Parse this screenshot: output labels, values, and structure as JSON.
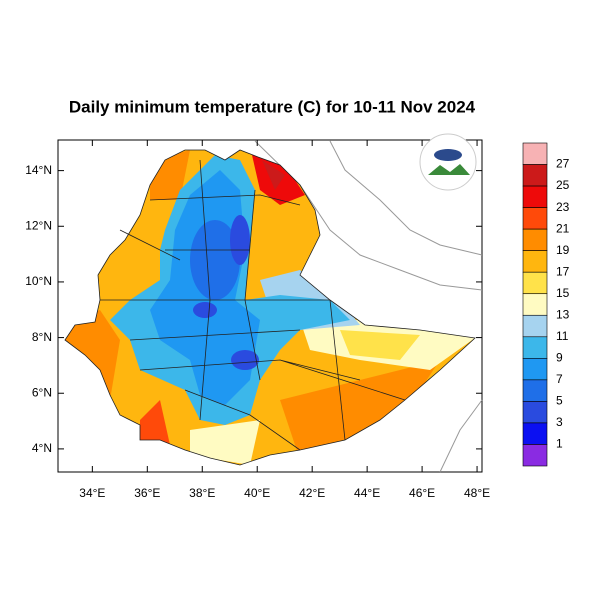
{
  "title": "Daily minimum temperature (C) for 10-11 Nov 2024",
  "map": {
    "xlim": [
      32.75,
      48.18
    ],
    "ylim": [
      3.17,
      15.1
    ],
    "xticks": [
      {
        "value": 34,
        "label": "34°E"
      },
      {
        "value": 36,
        "label": "36°E"
      },
      {
        "value": 38,
        "label": "38°E"
      },
      {
        "value": 40,
        "label": "40°E"
      },
      {
        "value": 42,
        "label": "42°E"
      },
      {
        "value": 44,
        "label": "44°E"
      },
      {
        "value": 46,
        "label": "46°E"
      },
      {
        "value": 48,
        "label": "48°E"
      }
    ],
    "yticks": [
      {
        "value": 4,
        "label": "4°N"
      },
      {
        "value": 6,
        "label": "6°N"
      },
      {
        "value": 8,
        "label": "8°N"
      },
      {
        "value": 10,
        "label": "10°N"
      },
      {
        "value": 12,
        "label": "12°N"
      },
      {
        "value": 14,
        "label": "14°N"
      }
    ]
  },
  "colorbar": {
    "levels": [
      27,
      25,
      23,
      21,
      19,
      17,
      15,
      13,
      11,
      9,
      7,
      5,
      3,
      1
    ],
    "colors": [
      "#f7b2b4",
      "#cc1a1a",
      "#ee0a0a",
      "#ff4a0a",
      "#ff8c00",
      "#ffb60f",
      "#ffe24a",
      "#fffbc2",
      "#a6d3ef",
      "#3cb7ea",
      "#1f98f2",
      "#1f6fe8",
      "#2a4bdf",
      "#0b10f2",
      "#8a2be2"
    ]
  }
}
